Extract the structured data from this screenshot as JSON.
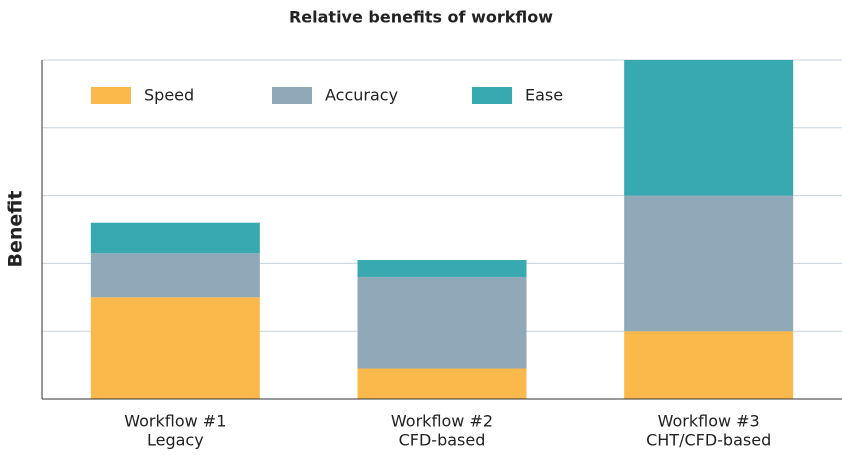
{
  "chart_data": {
    "type": "stacked_bar",
    "title": "Relative benefits of workflow",
    "y_label": "Benefit",
    "categories": [
      [
        "Workflow #1",
        "Legacy"
      ],
      [
        "Workflow #2",
        "CFD-based"
      ],
      [
        "Workflow #3",
        "CHT/CFD-based"
      ]
    ],
    "series": [
      {
        "name": "Speed",
        "color": "#fbb94b",
        "values": [
          1.5,
          0.45,
          1.0
        ]
      },
      {
        "name": "Accuracy",
        "color": "#8fa9b8",
        "values": [
          0.65,
          1.35,
          2.0
        ]
      },
      {
        "name": "Ease",
        "color": "#38a9b1",
        "values": [
          0.45,
          0.25,
          2.0
        ]
      }
    ],
    "ylim": [
      0,
      5
    ],
    "yticks": [
      0,
      1,
      2,
      3,
      4,
      5
    ],
    "grid": true,
    "legend": "upper left"
  }
}
